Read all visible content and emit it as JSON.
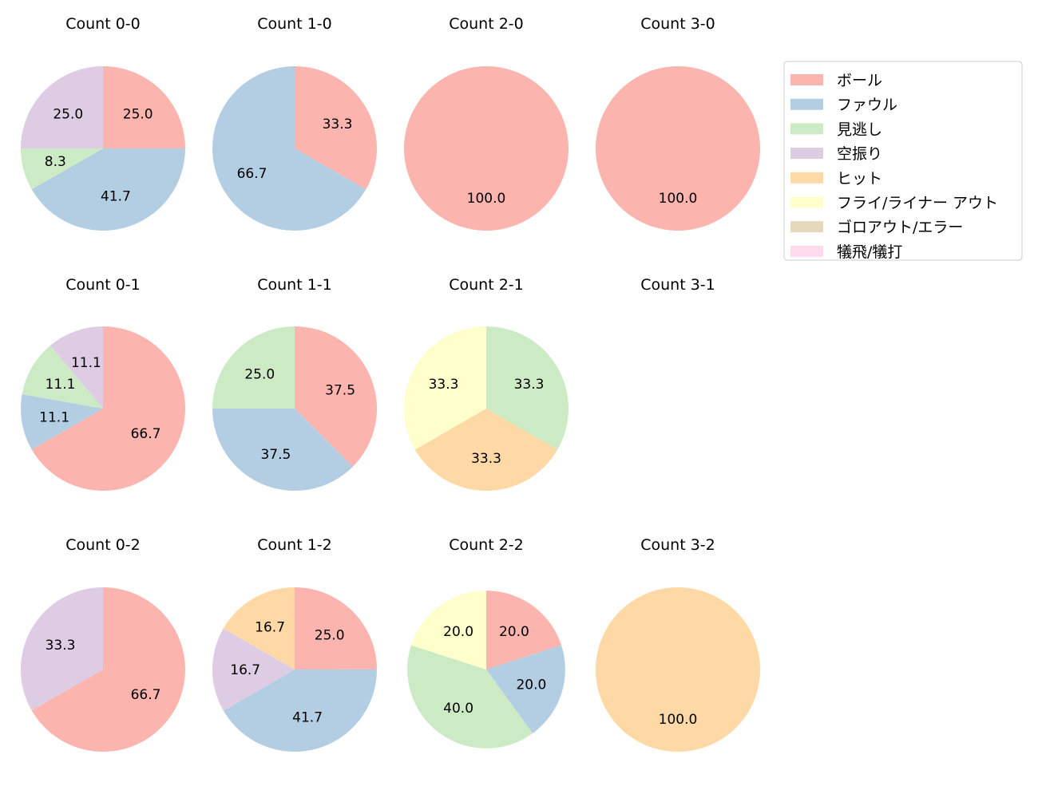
{
  "chart_data": {
    "type": "pie",
    "start_angle": "top, clockwise",
    "categories": [
      "ボール",
      "ファウル",
      "見逃し",
      "空振り",
      "ヒット",
      "フライ/ライナー アウト",
      "ゴロアウト/エラー",
      "犠飛/犠打"
    ],
    "colors": [
      "#fbb4ae",
      "#b3cde3",
      "#ccebc5",
      "#decbe4",
      "#fed9a6",
      "#ffffcc",
      "#e5d8bd",
      "#fddaec"
    ],
    "legend_position": "top-right",
    "charts": [
      {
        "title": "Count 0-0",
        "values": [
          25.0,
          41.7,
          8.3,
          25.0,
          0,
          0,
          0,
          0
        ],
        "labels": [
          "25.0",
          "41.7",
          "8.3",
          "25.0"
        ]
      },
      {
        "title": "Count 1-0",
        "values": [
          33.3,
          66.7,
          0,
          0,
          0,
          0,
          0,
          0
        ],
        "labels": [
          "33.3",
          "66.7"
        ]
      },
      {
        "title": "Count 2-0",
        "values": [
          100.0,
          0,
          0,
          0,
          0,
          0,
          0,
          0
        ],
        "labels": [
          "100.0"
        ]
      },
      {
        "title": "Count 3-0",
        "values": [
          100.0,
          0,
          0,
          0,
          0,
          0,
          0,
          0
        ],
        "labels": [
          "100.0"
        ]
      },
      {
        "title": "Count 0-1",
        "values": [
          66.7,
          11.1,
          11.1,
          11.1,
          0,
          0,
          0,
          0
        ],
        "labels": [
          "66.7",
          "11.1",
          "11.1",
          "11.1"
        ]
      },
      {
        "title": "Count 1-1",
        "values": [
          37.5,
          37.5,
          25.0,
          0,
          0,
          0,
          0,
          0
        ],
        "labels": [
          "37.5",
          "37.5",
          "25.0"
        ]
      },
      {
        "title": "Count 2-1",
        "values": [
          0,
          0,
          33.3,
          0,
          33.3,
          33.3,
          0,
          0
        ],
        "labels": [
          "33.3",
          "33.3",
          "33.3"
        ]
      },
      {
        "title": "Count 3-1",
        "values": [
          0,
          0,
          0,
          0,
          0,
          0,
          0,
          0
        ],
        "labels": []
      },
      {
        "title": "Count 0-2",
        "values": [
          66.7,
          0,
          0,
          33.3,
          0,
          0,
          0,
          0
        ],
        "labels": [
          "66.7",
          "33.3"
        ]
      },
      {
        "title": "Count 1-2",
        "values": [
          25.0,
          41.7,
          0,
          16.7,
          16.7,
          0,
          0,
          0
        ],
        "labels": [
          "25.0",
          "41.7",
          "16.7",
          "16.7"
        ]
      },
      {
        "title": "Count 2-2",
        "values": [
          20.0,
          20.0,
          40.0,
          0,
          0,
          20.0,
          0,
          0
        ],
        "labels": [
          "20.0",
          "20.0",
          "40.0",
          "20.0"
        ]
      },
      {
        "title": "Count 3-2",
        "values": [
          0,
          0,
          0,
          0,
          100.0,
          0,
          0,
          0
        ],
        "labels": [
          "100.0"
        ]
      }
    ]
  }
}
